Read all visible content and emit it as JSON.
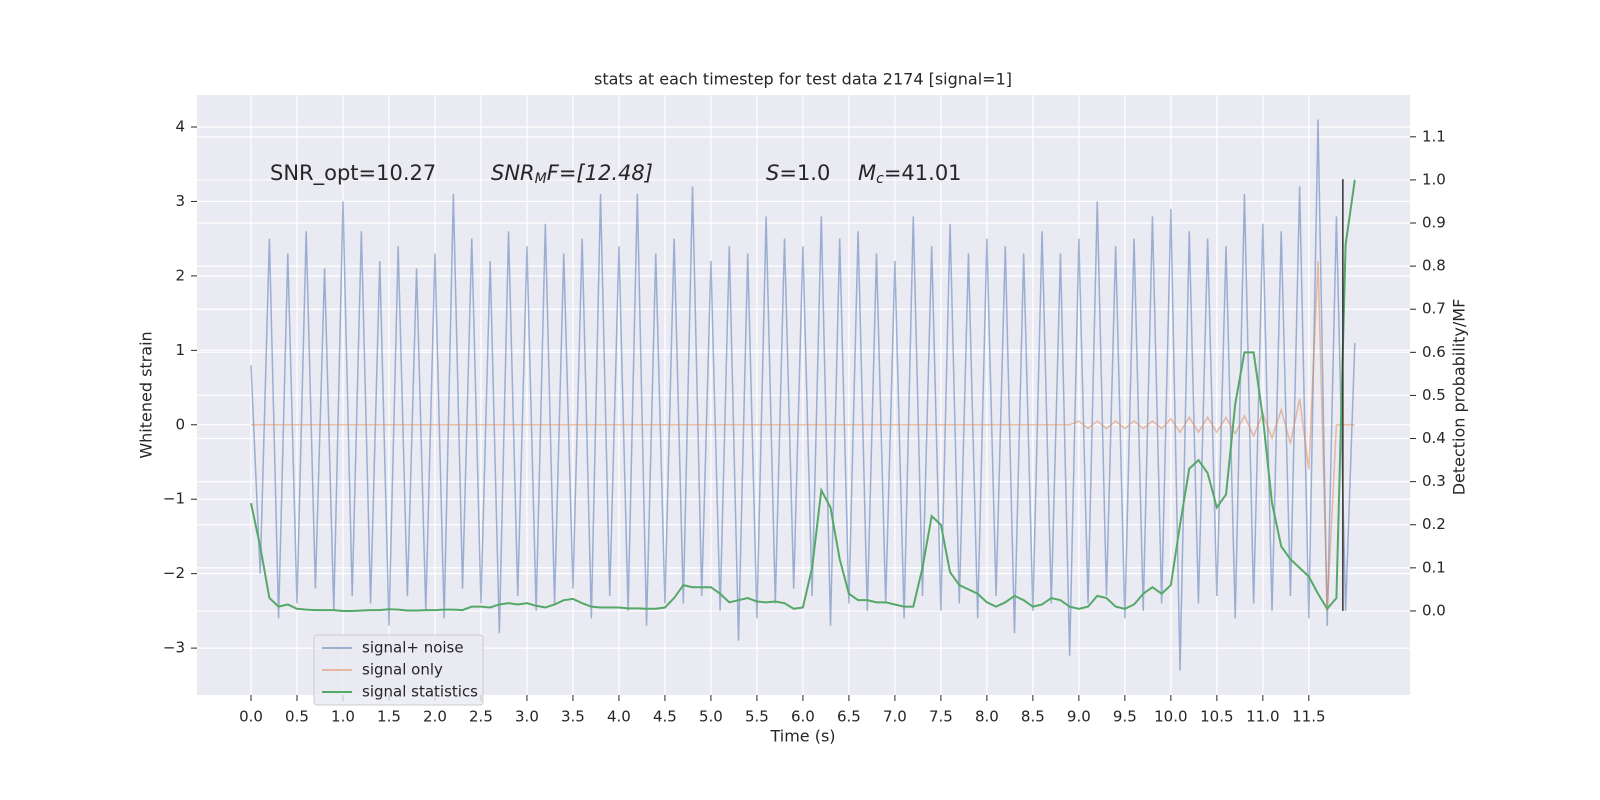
{
  "chart_data": {
    "type": "line",
    "title": "stats at each timestep for test data 2174 [signal=1]",
    "xlabel": "Time (s)",
    "ylabel": "Whitened strain",
    "y2label": "Detection probability/MF",
    "annotations": [
      [
        "SNR_opt=10.27"
      ],
      [
        "SNR",
        "M",
        "F=[12.48]"
      ],
      [
        "S",
        "=1.0"
      ],
      [
        "M",
        "c",
        "=41.01"
      ]
    ],
    "x": [
      0,
      0.1,
      0.2,
      0.3,
      0.4,
      0.5,
      0.6,
      0.7,
      0.8,
      0.9,
      1,
      1.1,
      1.2,
      1.3,
      1.4,
      1.5,
      1.6,
      1.7,
      1.8,
      1.9,
      2,
      2.1,
      2.2,
      2.3,
      2.4,
      2.5,
      2.6,
      2.7,
      2.8,
      2.9,
      3,
      3.1,
      3.2,
      3.3,
      3.4,
      3.5,
      3.6,
      3.7,
      3.8,
      3.9,
      4,
      4.1,
      4.2,
      4.3,
      4.4,
      4.5,
      4.6,
      4.7,
      4.8,
      4.9,
      5,
      5.1,
      5.2,
      5.3,
      5.4,
      5.5,
      5.6,
      5.7,
      5.8,
      5.9,
      6,
      6.1,
      6.2,
      6.3,
      6.4,
      6.5,
      6.6,
      6.7,
      6.8,
      6.9,
      7,
      7.1,
      7.2,
      7.3,
      7.4,
      7.5,
      7.6,
      7.7,
      7.8,
      7.9,
      8,
      8.1,
      8.2,
      8.3,
      8.4,
      8.5,
      8.6,
      8.7,
      8.8,
      8.9,
      9,
      9.1,
      9.2,
      9.3,
      9.4,
      9.5,
      9.6,
      9.7,
      9.8,
      9.9,
      10,
      10.1,
      10.2,
      10.3,
      10.4,
      10.5,
      10.6,
      10.7,
      10.8,
      10.9,
      11,
      11.1,
      11.2,
      11.3,
      11.4,
      11.5,
      11.6,
      11.7,
      11.8,
      11.9,
      12
    ],
    "series": [
      {
        "name": "signal+ noise",
        "color": "#4c72b0",
        "opacity": 0.5,
        "axis": "y",
        "values": [
          0.8,
          -2.0,
          2.5,
          -2.6,
          2.3,
          -2.4,
          2.6,
          -2.2,
          2.1,
          -2.5,
          3.0,
          -2.3,
          2.6,
          -2.4,
          2.2,
          -2.7,
          2.4,
          -2.3,
          2.1,
          -2.5,
          2.3,
          -2.6,
          3.1,
          -2.2,
          2.5,
          -2.4,
          2.2,
          -2.8,
          2.6,
          -2.3,
          2.4,
          -2.5,
          2.7,
          -2.4,
          2.3,
          -2.2,
          2.5,
          -2.6,
          3.1,
          -2.3,
          2.4,
          -2.5,
          3.1,
          -2.7,
          2.3,
          -2.4,
          2.5,
          -2.4,
          3.2,
          -2.3,
          2.2,
          -2.5,
          2.4,
          -2.9,
          2.3,
          -2.6,
          2.8,
          -2.4,
          2.5,
          -2.2,
          2.4,
          -2.3,
          2.8,
          -2.7,
          2.5,
          -2.4,
          2.6,
          -2.5,
          2.3,
          -2.4,
          2.2,
          -2.6,
          2.8,
          -2.3,
          2.4,
          -2.5,
          2.7,
          -2.4,
          2.3,
          -2.6,
          2.5,
          -2.3,
          2.4,
          -2.8,
          2.3,
          -2.5,
          2.6,
          -2.4,
          2.3,
          -3.1,
          2.5,
          -2.4,
          3.0,
          -2.3,
          2.4,
          -2.6,
          2.5,
          -2.5,
          2.8,
          -2.4,
          2.9,
          -3.3,
          2.6,
          -2.4,
          2.5,
          -2.3,
          2.4,
          -2.6,
          3.1,
          -2.4,
          2.7,
          -2.5,
          2.6,
          -2.3,
          3.2,
          -2.6,
          4.1,
          -2.7,
          2.8,
          -2.5,
          1.1
        ]
      },
      {
        "name": "signal only",
        "color": "#dd8452",
        "opacity": 0.5,
        "axis": "y",
        "values": [
          0,
          0,
          0,
          0,
          0,
          0,
          0,
          0,
          0,
          0,
          0,
          0,
          0,
          0,
          0,
          0,
          0,
          0,
          0,
          0,
          0,
          0,
          0,
          0,
          0,
          0,
          0,
          0,
          0,
          0,
          0,
          0,
          0,
          0,
          0,
          0,
          0,
          0,
          0,
          0,
          0,
          0,
          0,
          0,
          0,
          0,
          0,
          0,
          0,
          0,
          0,
          0,
          0,
          0,
          0,
          0,
          0,
          0,
          0,
          0,
          0,
          0,
          0,
          0,
          0,
          0,
          0,
          0,
          0,
          0,
          0,
          0,
          0,
          0,
          0,
          0,
          0,
          0,
          0,
          0,
          0,
          0,
          0,
          0,
          0,
          0,
          0,
          0,
          0,
          0,
          0.05,
          -0.05,
          0.05,
          -0.05,
          0.05,
          -0.05,
          0.05,
          -0.05,
          0.05,
          -0.05,
          0.08,
          -0.1,
          0.1,
          -0.1,
          0.1,
          -0.1,
          0.1,
          -0.12,
          0.12,
          -0.15,
          0.15,
          -0.18,
          0.2,
          -0.25,
          0.35,
          -0.6,
          2.2,
          -2.5,
          0,
          0,
          0
        ]
      },
      {
        "name": "signal statistics",
        "color": "#55a868",
        "opacity": 1,
        "axis": "y2",
        "values": [
          0.25,
          0.15,
          0.03,
          0.01,
          0.015,
          0.005,
          0.003,
          0.002,
          0.002,
          0.002,
          0.0,
          0.0,
          0.001,
          0.002,
          0.002,
          0.004,
          0.003,
          0.001,
          0.001,
          0.002,
          0.002,
          0.003,
          0.003,
          0.002,
          0.01,
          0.01,
          0.008,
          0.015,
          0.018,
          0.015,
          0.018,
          0.012,
          0.008,
          0.015,
          0.025,
          0.028,
          0.018,
          0.01,
          0.008,
          0.008,
          0.008,
          0.006,
          0.006,
          0.005,
          0.005,
          0.008,
          0.03,
          0.06,
          0.055,
          0.055,
          0.055,
          0.04,
          0.02,
          0.025,
          0.03,
          0.022,
          0.02,
          0.022,
          0.018,
          0.005,
          0.008,
          0.1,
          0.28,
          0.24,
          0.12,
          0.04,
          0.025,
          0.025,
          0.02,
          0.02,
          0.015,
          0.01,
          0.01,
          0.1,
          0.22,
          0.2,
          0.09,
          0.06,
          0.05,
          0.04,
          0.02,
          0.01,
          0.02,
          0.035,
          0.025,
          0.01,
          0.015,
          0.03,
          0.025,
          0.01,
          0.005,
          0.01,
          0.035,
          0.03,
          0.01,
          0.005,
          0.015,
          0.04,
          0.055,
          0.04,
          0.06,
          0.2,
          0.33,
          0.35,
          0.32,
          0.24,
          0.27,
          0.48,
          0.6,
          0.6,
          0.45,
          0.25,
          0.15,
          0.12,
          0.1,
          0.08,
          0.04,
          0.005,
          0.03,
          0.85,
          1.0
        ]
      }
    ],
    "vline": {
      "x": 11.87,
      "y": [
        -2.5,
        3.3
      ],
      "color": "#333333"
    },
    "xlim": [
      -0.587,
      12.6
    ],
    "ylim": [
      -3.63,
      4.43
    ],
    "y2lim": [
      -0.195,
      1.197
    ],
    "xticks": [
      {
        "value": 0,
        "label": "0.0"
      },
      0.5,
      {
        "value": 1,
        "label": "1.0"
      },
      1.5,
      {
        "value": 2,
        "label": "2.0"
      },
      2.5,
      {
        "value": 3,
        "label": "3.0"
      },
      3.5,
      {
        "value": 4,
        "label": "4.0"
      },
      4.5,
      {
        "value": 5,
        "label": "5.0"
      },
      5.5,
      {
        "value": 6,
        "label": "6.0"
      },
      6.5,
      {
        "value": 7,
        "label": "7.0"
      },
      7.5,
      {
        "value": 8,
        "label": "8.0"
      },
      8.5,
      {
        "value": 9,
        "label": "9.0"
      },
      9.5,
      {
        "value": 10,
        "label": "10.0"
      },
      10.5,
      {
        "value": 11,
        "label": "11.0"
      },
      11.5
    ],
    "yticks": [
      {
        "value": -3,
        "label": "−3"
      },
      {
        "value": -2,
        "label": "−2"
      },
      {
        "value": -1,
        "label": "−1"
      },
      0,
      1,
      2,
      3,
      4
    ],
    "y2ticks": [
      {
        "value": 0,
        "label": "0.0"
      },
      0.1,
      0.2,
      0.3,
      0.4,
      0.5,
      0.6,
      0.7,
      0.8,
      0.9,
      {
        "value": 1,
        "label": "1.0"
      },
      1.1
    ],
    "grid": true,
    "legend": "lower left"
  }
}
